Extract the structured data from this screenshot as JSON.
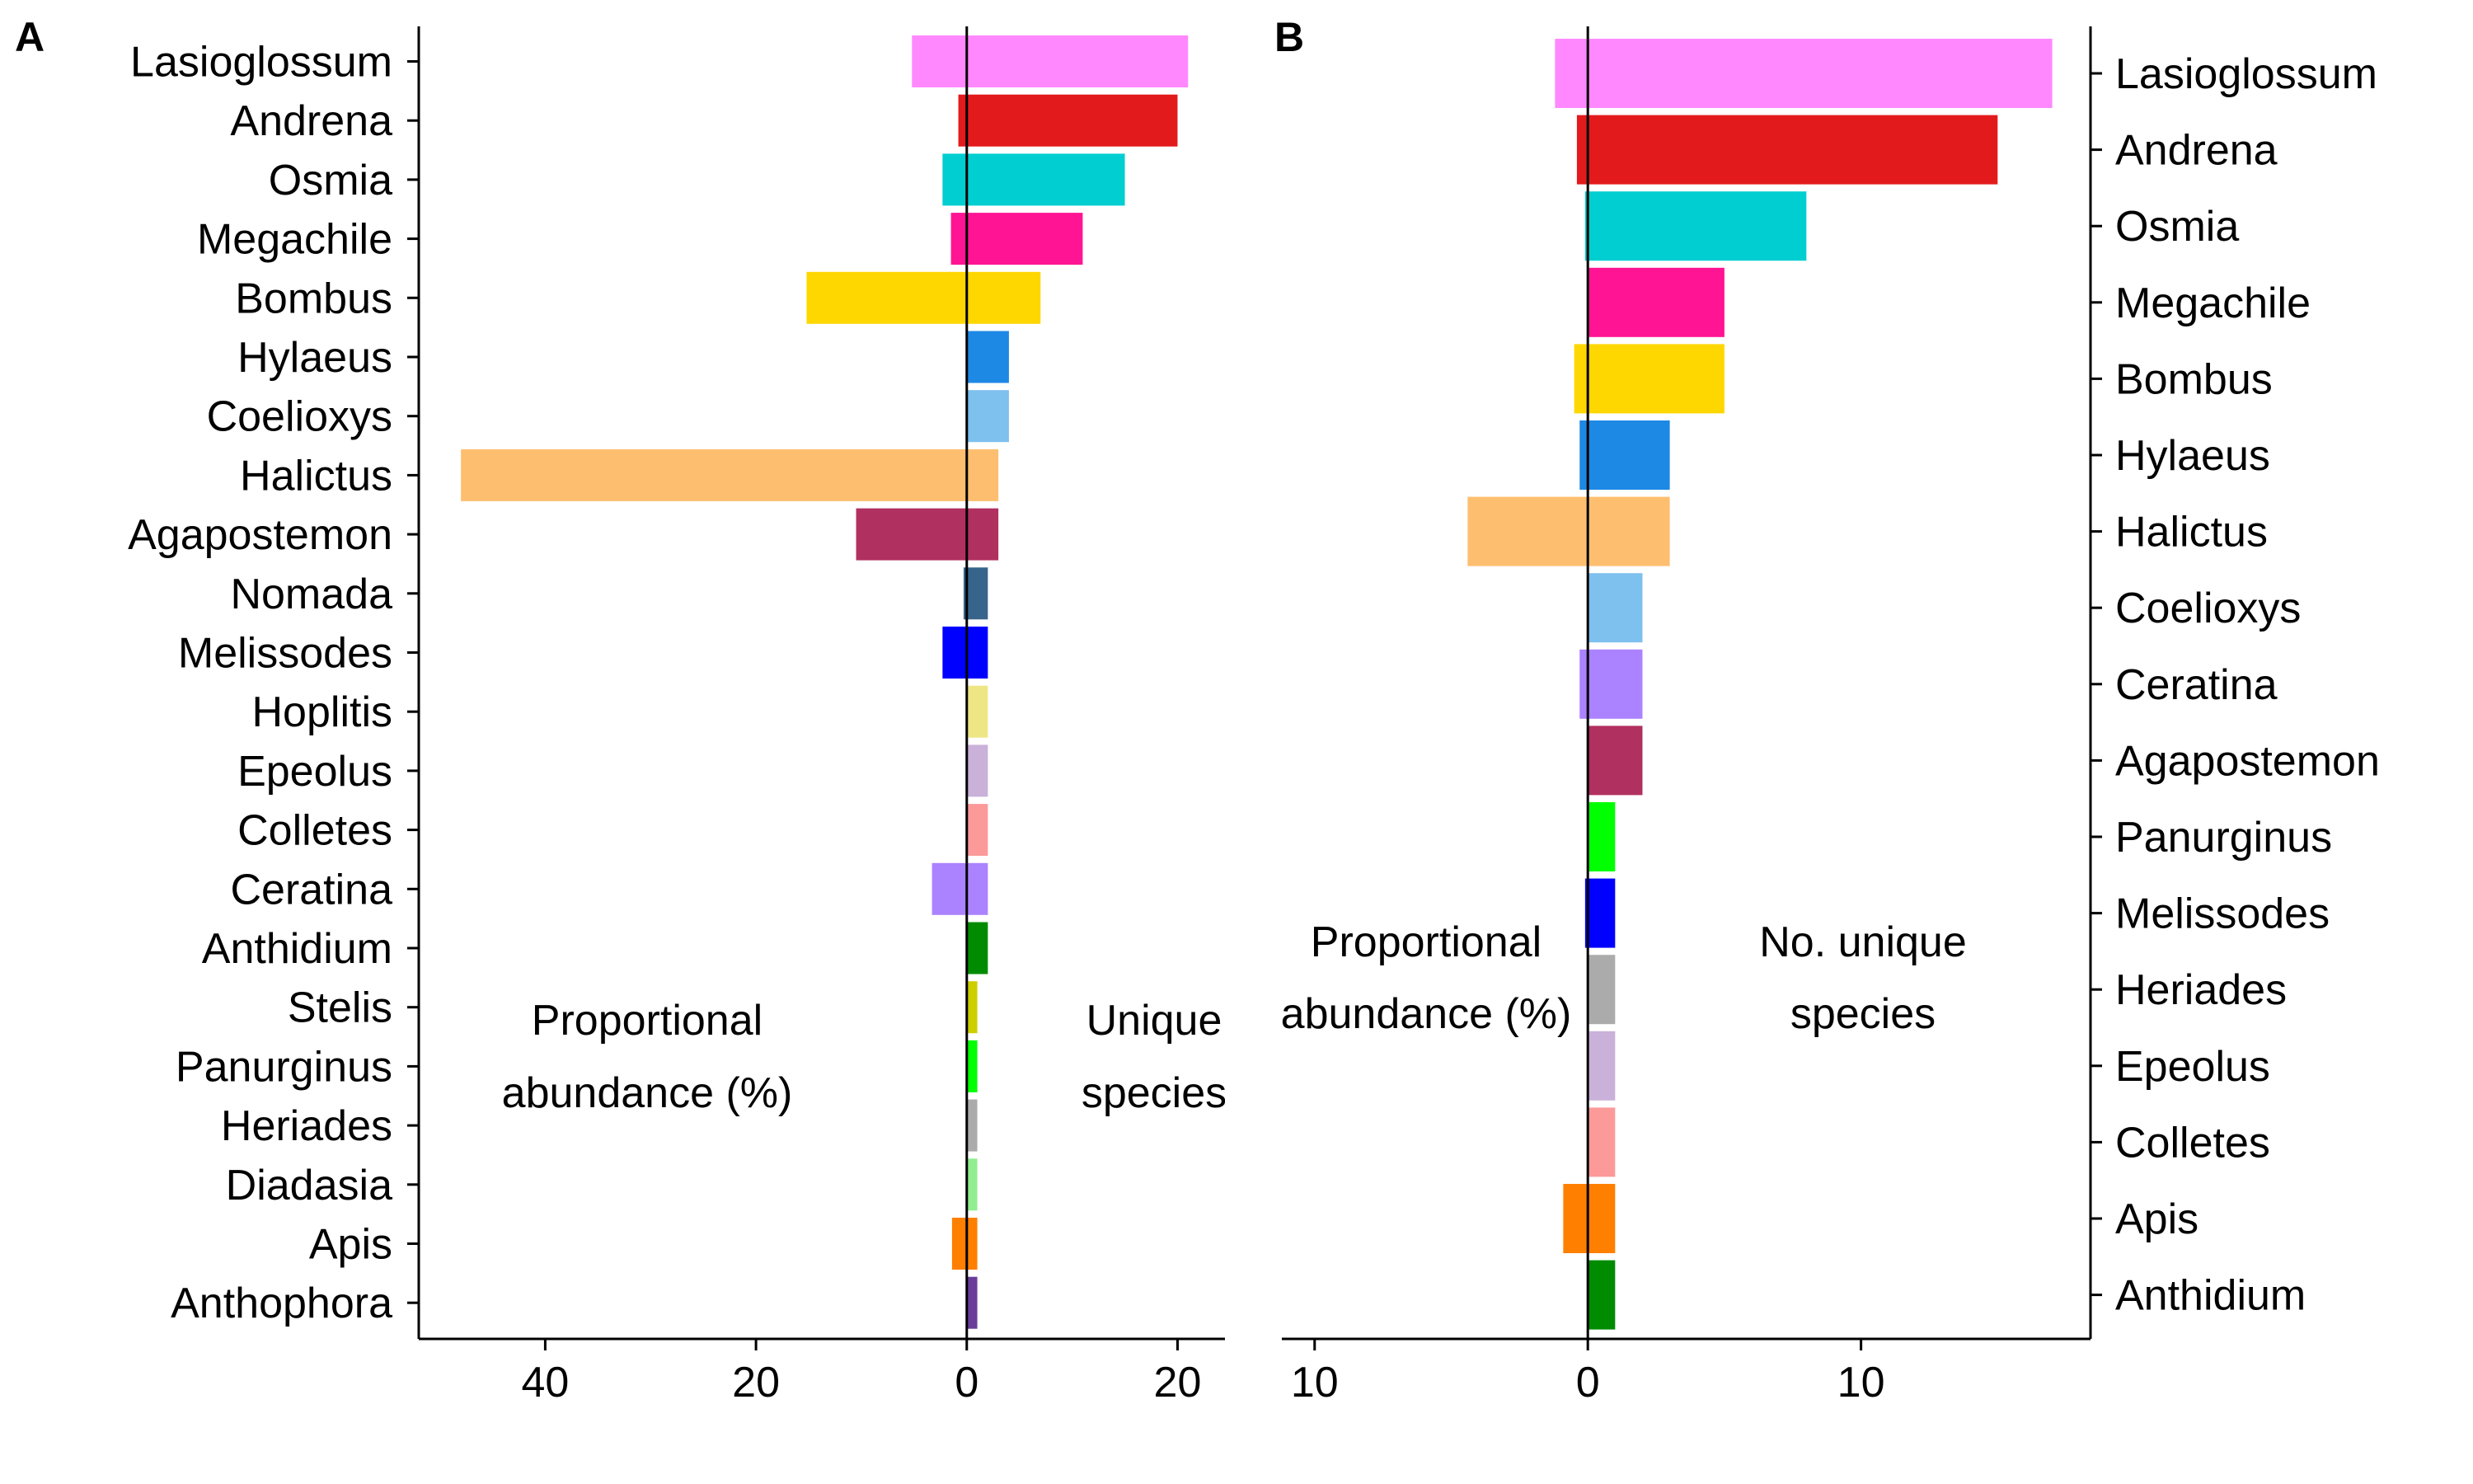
{
  "chart_data": [
    {
      "panel_label": "A",
      "type": "bar",
      "orientation": "horizontal-diverging",
      "axis_tick_labels": [
        "40",
        "20",
        "0",
        "20"
      ],
      "annotations": {
        "left": [
          "Proportional",
          "abundance (%)"
        ],
        "right": [
          "Unique",
          "species"
        ]
      },
      "categories": [
        "Lasioglossum",
        "Andrena",
        "Osmia",
        "Megachile",
        "Bombus",
        "Hylaeus",
        "Coelioxys",
        "Halictus",
        "Agapostemon",
        "Nomada",
        "Melissodes",
        "Hoplitis",
        "Epeolus",
        "Colletes",
        "Ceratina",
        "Anthidium",
        "Stelis",
        "Panurginus",
        "Heriades",
        "Diadasia",
        "Apis",
        "Anthophora"
      ],
      "colors": [
        "#FF88FF",
        "#E31A1C",
        "#00CED1",
        "#FF1493",
        "#FFD700",
        "#1E88E5",
        "#7EC0EE",
        "#FDBF6F",
        "#B03060",
        "#36648B",
        "#0000FF",
        "#EEE685",
        "#C9B1D9",
        "#FB9A99",
        "#AB82FF",
        "#008B00",
        "#CDCD00",
        "#00FF00",
        "#ABABAB",
        "#90EE90",
        "#FF7F00",
        "#6A3D9A"
      ],
      "series": [
        {
          "name": "Proportional abundance (%)",
          "values": [
            5.2,
            0.8,
            2.3,
            1.5,
            15.2,
            0,
            0,
            48.0,
            10.5,
            0.3,
            2.3,
            0,
            0,
            0,
            3.3,
            0,
            0,
            0,
            0,
            0,
            1.4,
            0
          ]
        },
        {
          "name": "Unique species",
          "values": [
            21,
            20,
            15,
            11,
            7,
            4,
            4,
            3,
            3,
            2,
            2,
            2,
            2,
            2,
            2,
            2,
            1,
            1,
            1,
            1,
            1,
            1
          ]
        }
      ],
      "xlim": [
        -52,
        24.5
      ]
    },
    {
      "panel_label": "B",
      "type": "bar",
      "orientation": "horizontal-diverging",
      "axis_tick_labels": [
        "10",
        "0",
        "10"
      ],
      "annotations": {
        "left": [
          "Proportional",
          "abundance (%)"
        ],
        "right": [
          "No. unique",
          "species"
        ]
      },
      "categories": [
        "Lasioglossum",
        "Andrena",
        "Osmia",
        "Megachile",
        "Bombus",
        "Hylaeus",
        "Halictus",
        "Coelioxys",
        "Ceratina",
        "Agapostemon",
        "Panurginus",
        "Melissodes",
        "Heriades",
        "Epeolus",
        "Colletes",
        "Apis",
        "Anthidium"
      ],
      "colors": [
        "#FF88FF",
        "#E31A1C",
        "#00CED1",
        "#FF1493",
        "#FFD700",
        "#1E88E5",
        "#FDBF6F",
        "#7EC0EE",
        "#AB82FF",
        "#B03060",
        "#00FF00",
        "#0000FF",
        "#ABABAB",
        "#C9B1D9",
        "#FB9A99",
        "#FF7F00",
        "#008B00"
      ],
      "series": [
        {
          "name": "Proportional abundance (%)",
          "values": [
            1.2,
            0.4,
            0.1,
            0,
            0.5,
            0.3,
            4.4,
            0,
            0.3,
            0,
            0,
            0.1,
            0,
            0,
            0,
            0.9,
            0
          ]
        },
        {
          "name": "No. unique species",
          "values": [
            17,
            15,
            8,
            5,
            5,
            3,
            3,
            2,
            2,
            2,
            1,
            1,
            1,
            1,
            1,
            1,
            1
          ]
        }
      ],
      "xlim": [
        -11.2,
        18.4
      ]
    }
  ]
}
